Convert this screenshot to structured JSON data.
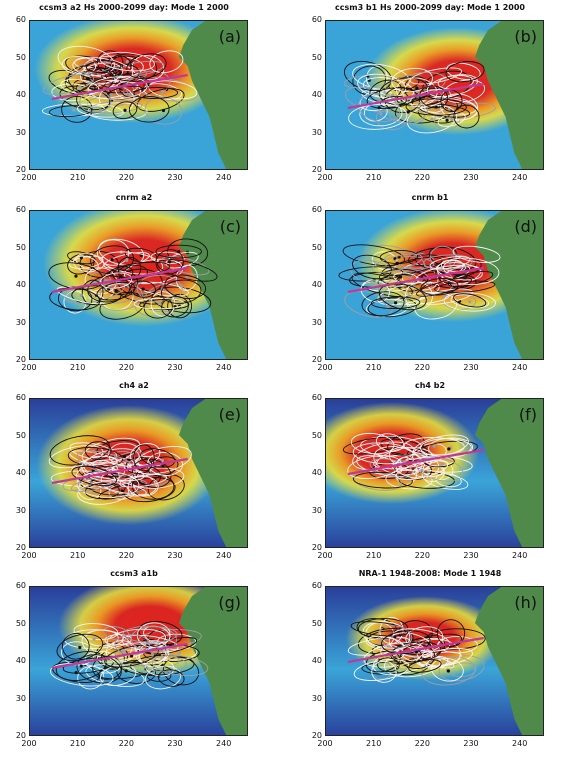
{
  "colors": {
    "land": "#4f8a4a",
    "ocean_low": "#2a3f9a",
    "ocean_mid": "#3aa4d8",
    "warm_1": "#f2e233",
    "warm_2": "#f39a1e",
    "warm_3": "#e2231b",
    "contour_black": "#111111",
    "contour_white": "#f4f4f4",
    "contour_gray": "#9aa0a8",
    "track_magenta": "#c0399a"
  },
  "chart_data": [
    {
      "type": "heatmap",
      "label": "(a)",
      "title": "ccsm3 a2 Hs 2000-2099 day:  Mode 1  2000",
      "xlim": [
        200,
        245
      ],
      "ylim": [
        20,
        60
      ],
      "xticks": [
        200,
        210,
        220,
        230,
        240
      ],
      "yticks": [
        20,
        30,
        40,
        50,
        60
      ]
    },
    {
      "type": "heatmap",
      "label": "(b)",
      "title": "ccsm3 b1 Hs 2000-2099 day:  Mode 1  2000",
      "xlim": [
        200,
        245
      ],
      "ylim": [
        20,
        60
      ],
      "xticks": [
        200,
        210,
        220,
        230,
        240
      ],
      "yticks": [
        20,
        30,
        40,
        50,
        60
      ]
    },
    {
      "type": "heatmap",
      "label": "(c)",
      "title": "cnrm a2",
      "xlim": [
        200,
        245
      ],
      "ylim": [
        20,
        60
      ],
      "xticks": [
        200,
        210,
        220,
        230,
        240
      ],
      "yticks": [
        20,
        30,
        40,
        50,
        60
      ]
    },
    {
      "type": "heatmap",
      "label": "(d)",
      "title": "cnrm b1",
      "xlim": [
        200,
        245
      ],
      "ylim": [
        20,
        60
      ],
      "xticks": [
        200,
        210,
        220,
        230,
        240
      ],
      "yticks": [
        20,
        30,
        40,
        50,
        60
      ]
    },
    {
      "type": "heatmap",
      "label": "(e)",
      "title": "ch4 a2",
      "xlim": [
        200,
        245
      ],
      "ylim": [
        20,
        60
      ],
      "xticks": [
        200,
        210,
        220,
        230,
        240
      ],
      "yticks": [
        20,
        30,
        40,
        50,
        60
      ]
    },
    {
      "type": "heatmap",
      "label": "(f)",
      "title": "ch4 b2",
      "xlim": [
        200,
        245
      ],
      "ylim": [
        20,
        60
      ],
      "xticks": [
        200,
        210,
        220,
        230,
        240
      ],
      "yticks": [
        20,
        30,
        40,
        50,
        60
      ]
    },
    {
      "type": "heatmap",
      "label": "(g)",
      "title": "ccsm3 a1b",
      "xlim": [
        200,
        245
      ],
      "ylim": [
        20,
        60
      ],
      "xticks": [
        200,
        210,
        220,
        230,
        240
      ],
      "yticks": [
        20,
        30,
        40,
        50,
        60
      ]
    },
    {
      "type": "heatmap",
      "label": "(h)",
      "title": "NRA-1 1948-2008: Mode 1  1948",
      "xlim": [
        200,
        245
      ],
      "ylim": [
        20,
        60
      ],
      "xticks": [
        200,
        210,
        220,
        230,
        240
      ],
      "yticks": [
        20,
        30,
        40,
        50,
        60
      ]
    }
  ]
}
